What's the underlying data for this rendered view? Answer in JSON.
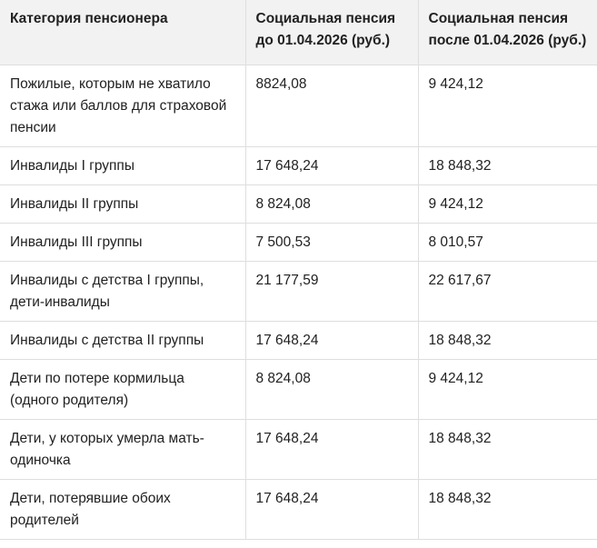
{
  "table": {
    "headers": [
      "Категория пенсионера",
      "Социальная пенсия до 01.04.2026 (руб.)",
      "Социальная пенсия после 01.04.2026 (руб.)"
    ],
    "rows": [
      [
        "Пожилые, которым не хватило стажа или баллов для страховой пенсии",
        "8824,08",
        "9 424,12"
      ],
      [
        "Инвалиды I группы",
        "17 648,24",
        "18 848,32"
      ],
      [
        "Инвалиды II группы",
        "8 824,08",
        "9 424,12"
      ],
      [
        "Инвалиды III группы",
        "7 500,53",
        "8 010,57"
      ],
      [
        "Инвалиды с детства I группы, дети-инвалиды",
        "21 177,59",
        "22 617,67"
      ],
      [
        "Инвалиды с детства II группы",
        "17 648,24",
        "18 848,32"
      ],
      [
        "Дети по потере кормильца (одного родителя)",
        "8 824,08",
        "9 424,12"
      ],
      [
        "Дети, у которых умерла мать-одиночка",
        "17 648,24",
        "18 848,32"
      ],
      [
        "Дети, потерявшие обоих родителей",
        "17 648,24",
        "18 848,32"
      ]
    ]
  }
}
